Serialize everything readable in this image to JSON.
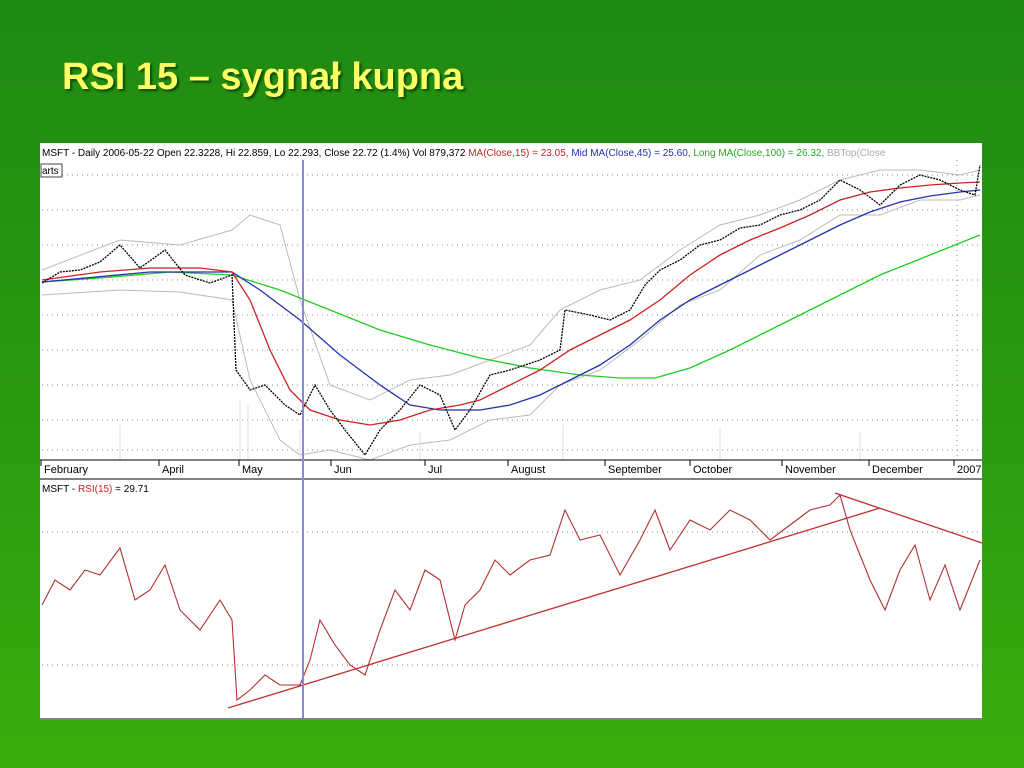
{
  "title": "RSI 15 – sygnał kupna",
  "price_panel": {
    "quote": "MSFT - Daily 2006-05-22 Open 22.3228, Hi 22.859, Lo 22.293, Close 22.72 (1.4%) Vol 879,372",
    "ma_short": "MA(Close,15) = 23.05,",
    "ma_mid": "Mid MA(Close,45) = 25.60,",
    "ma_long": "Long MA(Close,100) = 26.32,",
    "bb_top": "BBTop(Close",
    "tab": "arts",
    "months": [
      "February",
      "April",
      "May",
      "Jun",
      "Jul",
      "August",
      "September",
      "October",
      "November",
      "December",
      "2007"
    ]
  },
  "rsi_panel": {
    "symbol": "MSFT - ",
    "indicator": "RSI(15)",
    "value": " = 29.71"
  }
}
